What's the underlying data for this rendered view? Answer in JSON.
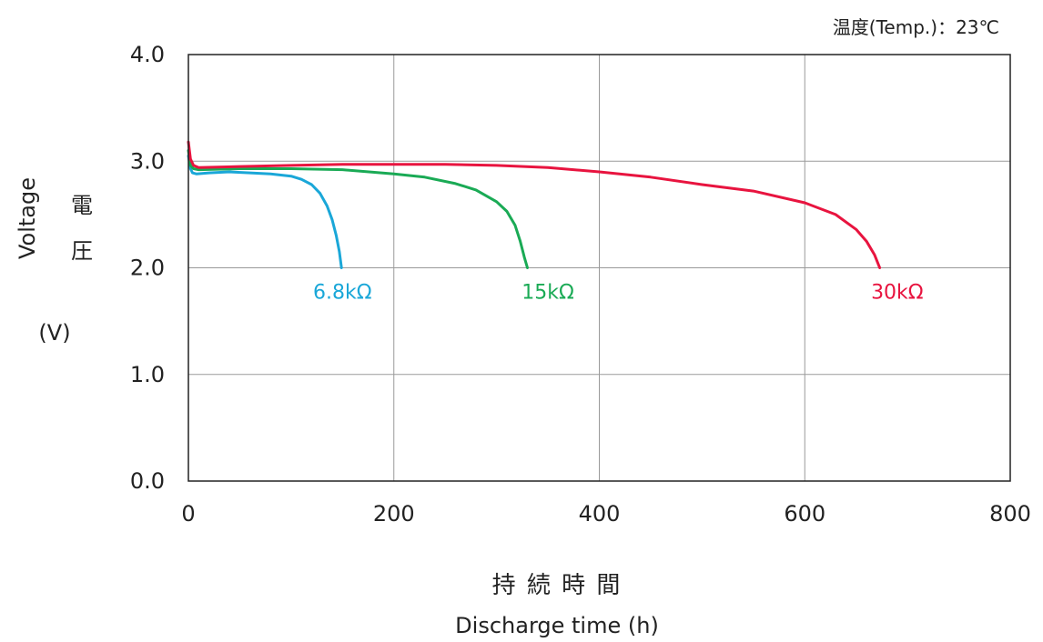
{
  "chart_data": {
    "type": "line",
    "condition": "温度(Temp.)：23℃",
    "xlabel_jp": "持 続 時 間",
    "xlabel_en": "Discharge time (h)",
    "ylabel_en": "Voltage",
    "ylabel_jp": [
      "電",
      "圧"
    ],
    "ylabel_unit": "(V)",
    "xlim": [
      0,
      800
    ],
    "ylim": [
      0.0,
      4.0
    ],
    "xticks": [
      "0",
      "200",
      "400",
      "600",
      "800"
    ],
    "yticks": [
      "0.0",
      "1.0",
      "2.0",
      "3.0",
      "4.0"
    ],
    "xtick_values": [
      0,
      200,
      400,
      600,
      800
    ],
    "ytick_values": [
      0.0,
      1.0,
      2.0,
      3.0,
      4.0
    ],
    "grid": true,
    "series": [
      {
        "name": "6.8kΩ",
        "color": "#1aa7d8",
        "label_at": [
          150,
          1.78
        ],
        "points": [
          [
            0,
            3.05
          ],
          [
            2,
            2.93
          ],
          [
            4,
            2.89
          ],
          [
            8,
            2.88
          ],
          [
            20,
            2.89
          ],
          [
            40,
            2.9
          ],
          [
            60,
            2.89
          ],
          [
            80,
            2.88
          ],
          [
            100,
            2.86
          ],
          [
            110,
            2.83
          ],
          [
            120,
            2.78
          ],
          [
            128,
            2.7
          ],
          [
            135,
            2.58
          ],
          [
            140,
            2.45
          ],
          [
            144,
            2.3
          ],
          [
            147,
            2.15
          ],
          [
            149,
            2.0
          ]
        ]
      },
      {
        "name": "15kΩ",
        "color": "#1aaa55",
        "label_at": [
          350,
          1.78
        ],
        "points": [
          [
            0,
            3.1
          ],
          [
            2,
            2.96
          ],
          [
            5,
            2.93
          ],
          [
            10,
            2.92
          ],
          [
            50,
            2.93
          ],
          [
            100,
            2.93
          ],
          [
            150,
            2.92
          ],
          [
            200,
            2.88
          ],
          [
            230,
            2.85
          ],
          [
            260,
            2.79
          ],
          [
            280,
            2.73
          ],
          [
            300,
            2.62
          ],
          [
            310,
            2.53
          ],
          [
            318,
            2.4
          ],
          [
            323,
            2.25
          ],
          [
            327,
            2.1
          ],
          [
            330,
            2.0
          ]
        ]
      },
      {
        "name": "30kΩ",
        "color": "#e8143f",
        "label_at": [
          690,
          1.78
        ],
        "points": [
          [
            0,
            3.18
          ],
          [
            2,
            3.02
          ],
          [
            5,
            2.96
          ],
          [
            10,
            2.94
          ],
          [
            50,
            2.95
          ],
          [
            100,
            2.96
          ],
          [
            150,
            2.97
          ],
          [
            200,
            2.97
          ],
          [
            250,
            2.97
          ],
          [
            300,
            2.96
          ],
          [
            350,
            2.94
          ],
          [
            400,
            2.9
          ],
          [
            450,
            2.85
          ],
          [
            500,
            2.78
          ],
          [
            550,
            2.72
          ],
          [
            600,
            2.61
          ],
          [
            630,
            2.5
          ],
          [
            650,
            2.36
          ],
          [
            660,
            2.25
          ],
          [
            668,
            2.12
          ],
          [
            673,
            2.0
          ]
        ]
      }
    ]
  }
}
